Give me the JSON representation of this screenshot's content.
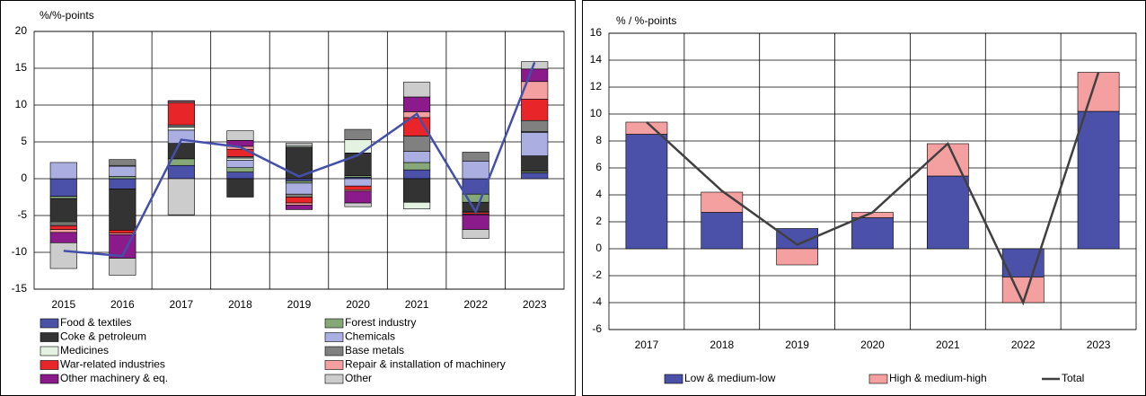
{
  "chart_data": [
    {
      "type": "bar",
      "stacked": true,
      "unit_label": "%/%-points",
      "categories": [
        "2015",
        "2016",
        "2017",
        "2018",
        "2019",
        "2020",
        "2021",
        "2022",
        "2023"
      ],
      "series": [
        {
          "name": "Food & textiles",
          "color": "#4b50a8",
          "values": [
            -2.4,
            -1.4,
            1.8,
            0.9,
            -0.3,
            0.2,
            1.2,
            -2.1,
            0.8
          ]
        },
        {
          "name": "Forest industry",
          "color": "#86a878",
          "values": [
            -0.3,
            0.3,
            0.9,
            0.6,
            -0.3,
            0.2,
            1.0,
            -1.1,
            0.2
          ]
        },
        {
          "name": "Coke & petroleum",
          "color": "#333333",
          "values": [
            -3.2,
            -5.6,
            2.1,
            -2.5,
            4.3,
            3.1,
            -3.2,
            -1.3,
            2.1
          ]
        },
        {
          "name": "Chemicals",
          "color": "#aaaee0",
          "values": [
            2.2,
            1.4,
            1.8,
            1.0,
            -1.5,
            -1.0,
            1.5,
            2.4,
            3.2
          ]
        },
        {
          "name": "Medicines",
          "color": "#e4f2e2",
          "values": [
            -0.2,
            0.1,
            0.4,
            0.3,
            0.2,
            1.8,
            -0.9,
            -0.1,
            0.1
          ]
        },
        {
          "name": "Base metals",
          "color": "#808080",
          "values": [
            -0.3,
            0.8,
            0.3,
            0.2,
            -0.4,
            1.4,
            2.1,
            1.2,
            1.5
          ]
        },
        {
          "name": "War-related industries",
          "color": "#e8262a",
          "values": [
            -0.5,
            -0.4,
            3.0,
            1.0,
            -0.8,
            -0.5,
            2.5,
            -0.2,
            2.9
          ]
        },
        {
          "name": "Repair & installation of machinery",
          "color": "#f4a0a0",
          "values": [
            -0.4,
            -0.2,
            0.2,
            0.4,
            -0.3,
            -0.2,
            0.8,
            -0.1,
            2.4
          ]
        },
        {
          "name": "Other machinery & eq.",
          "color": "#8b1a8b",
          "values": [
            -1.4,
            -3.2,
            0.1,
            0.8,
            -0.6,
            -1.6,
            2.0,
            -2.0,
            1.7
          ]
        },
        {
          "name": "Other",
          "color": "#cccccc",
          "values": [
            -3.5,
            -2.3,
            -4.9,
            1.3,
            0.3,
            -0.5,
            2.0,
            -1.2,
            1.0
          ]
        }
      ],
      "line": {
        "color": "#4450a8",
        "values": [
          -9.8,
          -10.5,
          5.3,
          4.3,
          0.3,
          3.2,
          8.8,
          -4.5,
          15.8
        ]
      },
      "ylim": [
        -15,
        20
      ],
      "yticks": [
        -15,
        -10,
        -5,
        0,
        5,
        10,
        15,
        20
      ],
      "grid": true,
      "legend": "bottom"
    },
    {
      "type": "bar",
      "stacked": true,
      "unit_label": "% / %-points",
      "categories": [
        "2017",
        "2018",
        "2019",
        "2020",
        "2021",
        "2022",
        "2023"
      ],
      "series": [
        {
          "name": "Low & medium-low",
          "color": "#4b50a8",
          "values": [
            8.5,
            2.7,
            1.5,
            2.3,
            5.4,
            -2.1,
            10.2
          ]
        },
        {
          "name": "High & medium-high",
          "color": "#f4a0a0",
          "values": [
            0.9,
            1.5,
            -1.2,
            0.4,
            2.4,
            -1.9,
            2.9
          ]
        }
      ],
      "line": {
        "name": "Total",
        "color": "#404040",
        "values": [
          9.4,
          4.3,
          0.3,
          2.7,
          7.8,
          -4.0,
          13.1
        ]
      },
      "ylim": [
        -6,
        16
      ],
      "yticks": [
        -6,
        -4,
        -2,
        0,
        2,
        4,
        6,
        8,
        10,
        12,
        14,
        16
      ],
      "grid": true,
      "legend": "bottom"
    }
  ]
}
